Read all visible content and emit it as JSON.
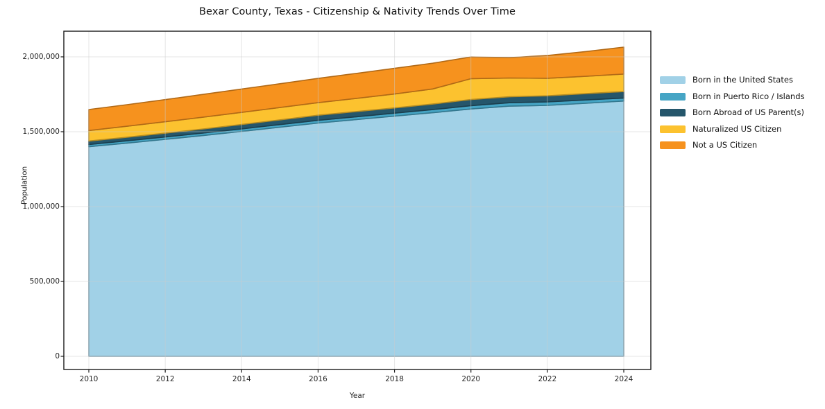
{
  "title": "Bexar County, Texas - Citizenship & Nativity Trends Over Time",
  "xlabel": "Year",
  "ylabel": "Population",
  "chart_data": {
    "type": "area",
    "stacked": true,
    "title": "Bexar County, Texas - Citizenship & Nativity Trends Over Time",
    "xlabel": "Year",
    "ylabel": "Population",
    "grid": true,
    "legend_position": "right",
    "x": [
      2010,
      2011,
      2012,
      2013,
      2014,
      2015,
      2016,
      2017,
      2018,
      2019,
      2020,
      2021,
      2022,
      2023,
      2024
    ],
    "series": [
      {
        "name": "Born in the United States",
        "color": "#a1d1e7",
        "values": [
          1400000,
          1424000,
          1449000,
          1475000,
          1502000,
          1530000,
          1558000,
          1581000,
          1604000,
          1627000,
          1652000,
          1671000,
          1676000,
          1690000,
          1705000
        ]
      },
      {
        "name": "Born in Puerto Rico / Islands",
        "color": "#46a5c5",
        "values": [
          15000,
          15500,
          16000,
          16500,
          17000,
          17500,
          18000,
          19000,
          20000,
          20500,
          22000,
          22500,
          23000,
          22000,
          20000
        ]
      },
      {
        "name": "Born Abroad of US Parent(s)",
        "color": "#25566b",
        "values": [
          23000,
          24000,
          25500,
          27000,
          29000,
          31500,
          34000,
          34500,
          35000,
          37000,
          41000,
          40000,
          41000,
          42000,
          43000
        ]
      },
      {
        "name": "Naturalized US Citizen",
        "color": "#fcc22f",
        "values": [
          70000,
          73000,
          76000,
          79000,
          81000,
          82500,
          84000,
          88000,
          93000,
          101000,
          139000,
          125000,
          117000,
          116000,
          117000
        ]
      },
      {
        "name": "Not a US Citizen",
        "color": "#f6921e",
        "values": [
          140000,
          144000,
          148000,
          152000,
          156000,
          159000,
          162000,
          167000,
          171000,
          172000,
          145000,
          136000,
          152000,
          165000,
          180000
        ]
      }
    ],
    "xticks": [
      2010,
      2012,
      2014,
      2016,
      2018,
      2020,
      2022,
      2024
    ],
    "yticks": [
      0,
      500000,
      1000000,
      1500000,
      2000000
    ],
    "ytick_labels": [
      "0",
      "500,000",
      "1,000,000",
      "1,500,000",
      "2,000,000"
    ],
    "xlim": [
      2009.35,
      2024.7
    ],
    "ylim": [
      0,
      2171000
    ],
    "frame_color": "#1a1a1a",
    "grid_color": "#cccccc"
  }
}
